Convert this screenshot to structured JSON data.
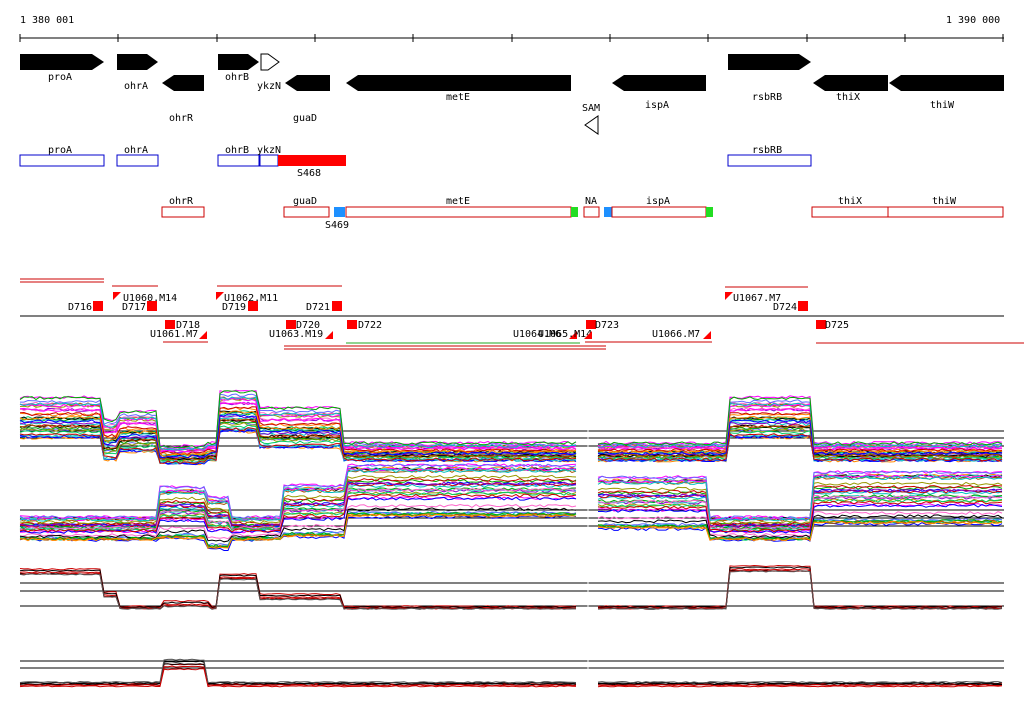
{
  "ruler": {
    "start_label": "1 380 001",
    "end_label": "1 390 000"
  },
  "colors": {
    "gene_arrow": "#000000",
    "annotation_box": "#0000cc",
    "transcript_box": "#cc0000",
    "highlight_red": "#ff0000",
    "marker_blue": "#1e90ff",
    "marker_green": "#22dd22",
    "profile_line_sense": "#cc0000",
    "profile_line_other": "#000000"
  },
  "genes": [
    {
      "name": "proA",
      "strand": "+"
    },
    {
      "name": "ohrA",
      "strand": "+"
    },
    {
      "name": "ohrR",
      "strand": "-"
    },
    {
      "name": "ohrB",
      "strand": "+"
    },
    {
      "name": "ykzN",
      "strand": "+",
      "outline": true
    },
    {
      "name": "guaD",
      "strand": "-"
    },
    {
      "name": "metE",
      "strand": "-"
    },
    {
      "name": "SAM",
      "strand": "-",
      "outline": true
    },
    {
      "name": "ispA",
      "strand": "-"
    },
    {
      "name": "rsbRB",
      "strand": "+"
    },
    {
      "name": "thiX",
      "strand": "-"
    },
    {
      "name": "thiW",
      "strand": "-"
    }
  ],
  "annotations_plus": [
    "proA",
    "ohrA",
    "ohrB",
    "ykzN",
    "S468",
    "rsbRB"
  ],
  "annotations_minus": [
    "ohrR",
    "guaD",
    "S469",
    "metE",
    "NA",
    "ispA",
    "thiX",
    "thiW"
  ],
  "segments": [
    "D716",
    "D717",
    "U1060.M14",
    "U1061.M7",
    "D718",
    "D719",
    "U1062.M11",
    "D720",
    "U1063.M19",
    "D721",
    "D722",
    "U1064.M6",
    "U1065.M14",
    "D723",
    "U1066.M7",
    "U1067.M7",
    "D724",
    "D725"
  ]
}
